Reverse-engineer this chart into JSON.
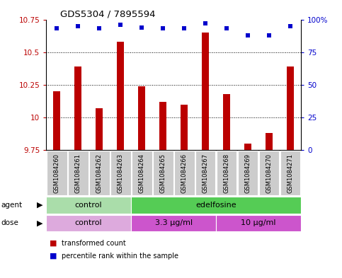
{
  "title": "GDS5304 / 7895594",
  "samples": [
    "GSM1084260",
    "GSM1084261",
    "GSM1084262",
    "GSM1084263",
    "GSM1084264",
    "GSM1084265",
    "GSM1084266",
    "GSM1084267",
    "GSM1084268",
    "GSM1084269",
    "GSM1084270",
    "GSM1084271"
  ],
  "bar_values": [
    10.2,
    10.39,
    10.07,
    10.58,
    10.24,
    10.12,
    10.1,
    10.65,
    10.18,
    9.8,
    9.88,
    10.39
  ],
  "dot_values": [
    93,
    95,
    93,
    96,
    94,
    93,
    93,
    97,
    93,
    88,
    88,
    95
  ],
  "ymin": 9.75,
  "ymax": 10.75,
  "yticks": [
    9.75,
    10.0,
    10.25,
    10.5,
    10.75
  ],
  "ytick_labels": [
    "9.75",
    "10",
    "10.25",
    "10.5",
    "10.75"
  ],
  "right_yticks": [
    0,
    25,
    50,
    75,
    100
  ],
  "right_ytick_labels": [
    "0",
    "25",
    "50",
    "75",
    "100%"
  ],
  "bar_color": "#bb0000",
  "dot_color": "#0000cc",
  "bar_base": 9.75,
  "agent_groups": [
    {
      "label": "control",
      "start": 0,
      "end": 3,
      "color": "#aaddaa"
    },
    {
      "label": "edelfosine",
      "start": 4,
      "end": 11,
      "color": "#55cc55"
    }
  ],
  "dose_groups": [
    {
      "label": "control",
      "start": 0,
      "end": 3,
      "color": "#ddaadd"
    },
    {
      "label": "3.3 μg/ml",
      "start": 4,
      "end": 7,
      "color": "#cc55cc"
    },
    {
      "label": "10 μg/ml",
      "start": 8,
      "end": 11,
      "color": "#cc55cc"
    }
  ],
  "legend_items": [
    {
      "label": "transformed count",
      "color": "#bb0000"
    },
    {
      "label": "percentile rank within the sample",
      "color": "#0000cc"
    }
  ],
  "sample_box_color": "#cccccc",
  "grid_color": "black"
}
